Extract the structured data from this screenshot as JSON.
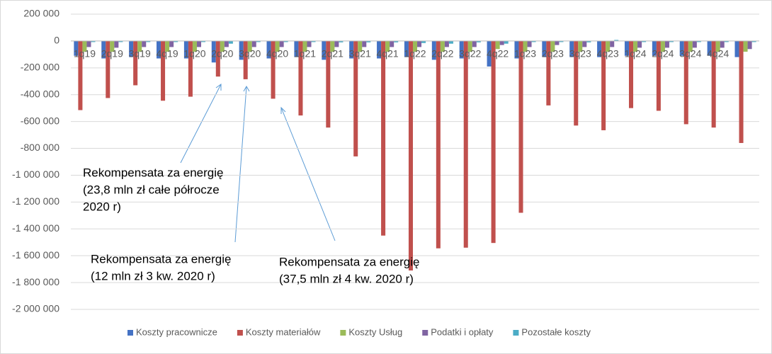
{
  "chart_data": {
    "type": "bar",
    "categories": [
      "1q19",
      "2q19",
      "3q19",
      "4q19",
      "1q20",
      "2q20",
      "3q20",
      "4q20",
      "1q21",
      "2q21",
      "3q21",
      "4q21",
      "1q22",
      "2q22",
      "3q22",
      "4q22",
      "1q23",
      "2q23",
      "3q23",
      "4q23",
      "1q24",
      "2q24",
      "3q24",
      "4q24",
      null
    ],
    "series": [
      {
        "name": "Koszty pracownicze",
        "color": "#4472c4",
        "values": [
          -110000,
          -130000,
          -120000,
          -130000,
          -130000,
          -160000,
          -140000,
          -130000,
          -120000,
          -140000,
          -130000,
          -130000,
          -120000,
          -140000,
          -130000,
          -190000,
          -130000,
          -120000,
          -120000,
          -120000,
          -110000,
          -110000,
          -110000,
          -110000,
          -120000
        ]
      },
      {
        "name": "Koszty materiałów",
        "color": "#c0504d",
        "values": [
          -515000,
          -425000,
          -330000,
          -445000,
          -415000,
          -265000,
          -285000,
          -430000,
          -555000,
          -645000,
          -860000,
          -1450000,
          -1710000,
          -1545000,
          -1540000,
          -1505000,
          -1280000,
          -480000,
          -630000,
          -665000,
          -500000,
          -520000,
          -620000,
          -645000,
          -760000
        ]
      },
      {
        "name": "Koszty Usług",
        "color": "#9bbb59",
        "values": [
          -80000,
          -80000,
          -80000,
          -80000,
          -80000,
          -80000,
          -80000,
          -80000,
          -80000,
          -80000,
          -80000,
          -80000,
          -80000,
          -80000,
          -80000,
          -60000,
          -80000,
          -80000,
          -80000,
          -80000,
          -80000,
          -80000,
          -80000,
          -80000,
          -80000
        ]
      },
      {
        "name": "Podatki i opłaty",
        "color": "#8064a2",
        "values": [
          -45000,
          -50000,
          -45000,
          -45000,
          -45000,
          -45000,
          -45000,
          -45000,
          -45000,
          -45000,
          -45000,
          -45000,
          -45000,
          -45000,
          -45000,
          -30000,
          -45000,
          -30000,
          -45000,
          -45000,
          -50000,
          -50000,
          -50000,
          -50000,
          -60000
        ]
      },
      {
        "name": "Pozostałe koszty",
        "color": "#4bacc6",
        "values": [
          -8000,
          -8000,
          -8000,
          -8000,
          -8000,
          -20000,
          -8000,
          -8000,
          -8000,
          -10000,
          -10000,
          -10000,
          -15000,
          -20000,
          -10000,
          -20000,
          -8000,
          -8000,
          -10000,
          8000,
          -8000,
          -8000,
          -8000,
          -8000,
          -8000
        ]
      }
    ],
    "ylim": [
      -2000000,
      200000
    ],
    "yticks": [
      {
        "value": -2000000,
        "label": "-2 000 000"
      },
      {
        "value": -1800000,
        "label": "-1 800 000"
      },
      {
        "value": -1600000,
        "label": "-1 600 000"
      },
      {
        "value": -1400000,
        "label": "-1 400 000"
      },
      {
        "value": -1200000,
        "label": "-1 200 000"
      },
      {
        "value": -1000000,
        "label": "-1 000 000"
      },
      {
        "value": -800000,
        "label": "-800 000"
      },
      {
        "value": -600000,
        "label": "-600 000"
      },
      {
        "value": -400000,
        "label": "-400 000"
      },
      {
        "value": -200000,
        "label": "-200 000"
      },
      0,
      {
        "value": 200000,
        "label": "200 000"
      }
    ],
    "grid": true,
    "legend": "bottom",
    "annotations": [
      {
        "lines": [
          "Rekompensata za energię",
          "(23,8 mln zł całe półrocze",
          "2020 r)"
        ]
      },
      {
        "lines": [
          "Rekompensata za energię",
          "(12 mln zł 3 kw. 2020 r)"
        ]
      },
      {
        "lines": [
          "Rekompensata za energię",
          "(37,5 mln zł 4 kw. 2020 r)"
        ]
      }
    ]
  }
}
